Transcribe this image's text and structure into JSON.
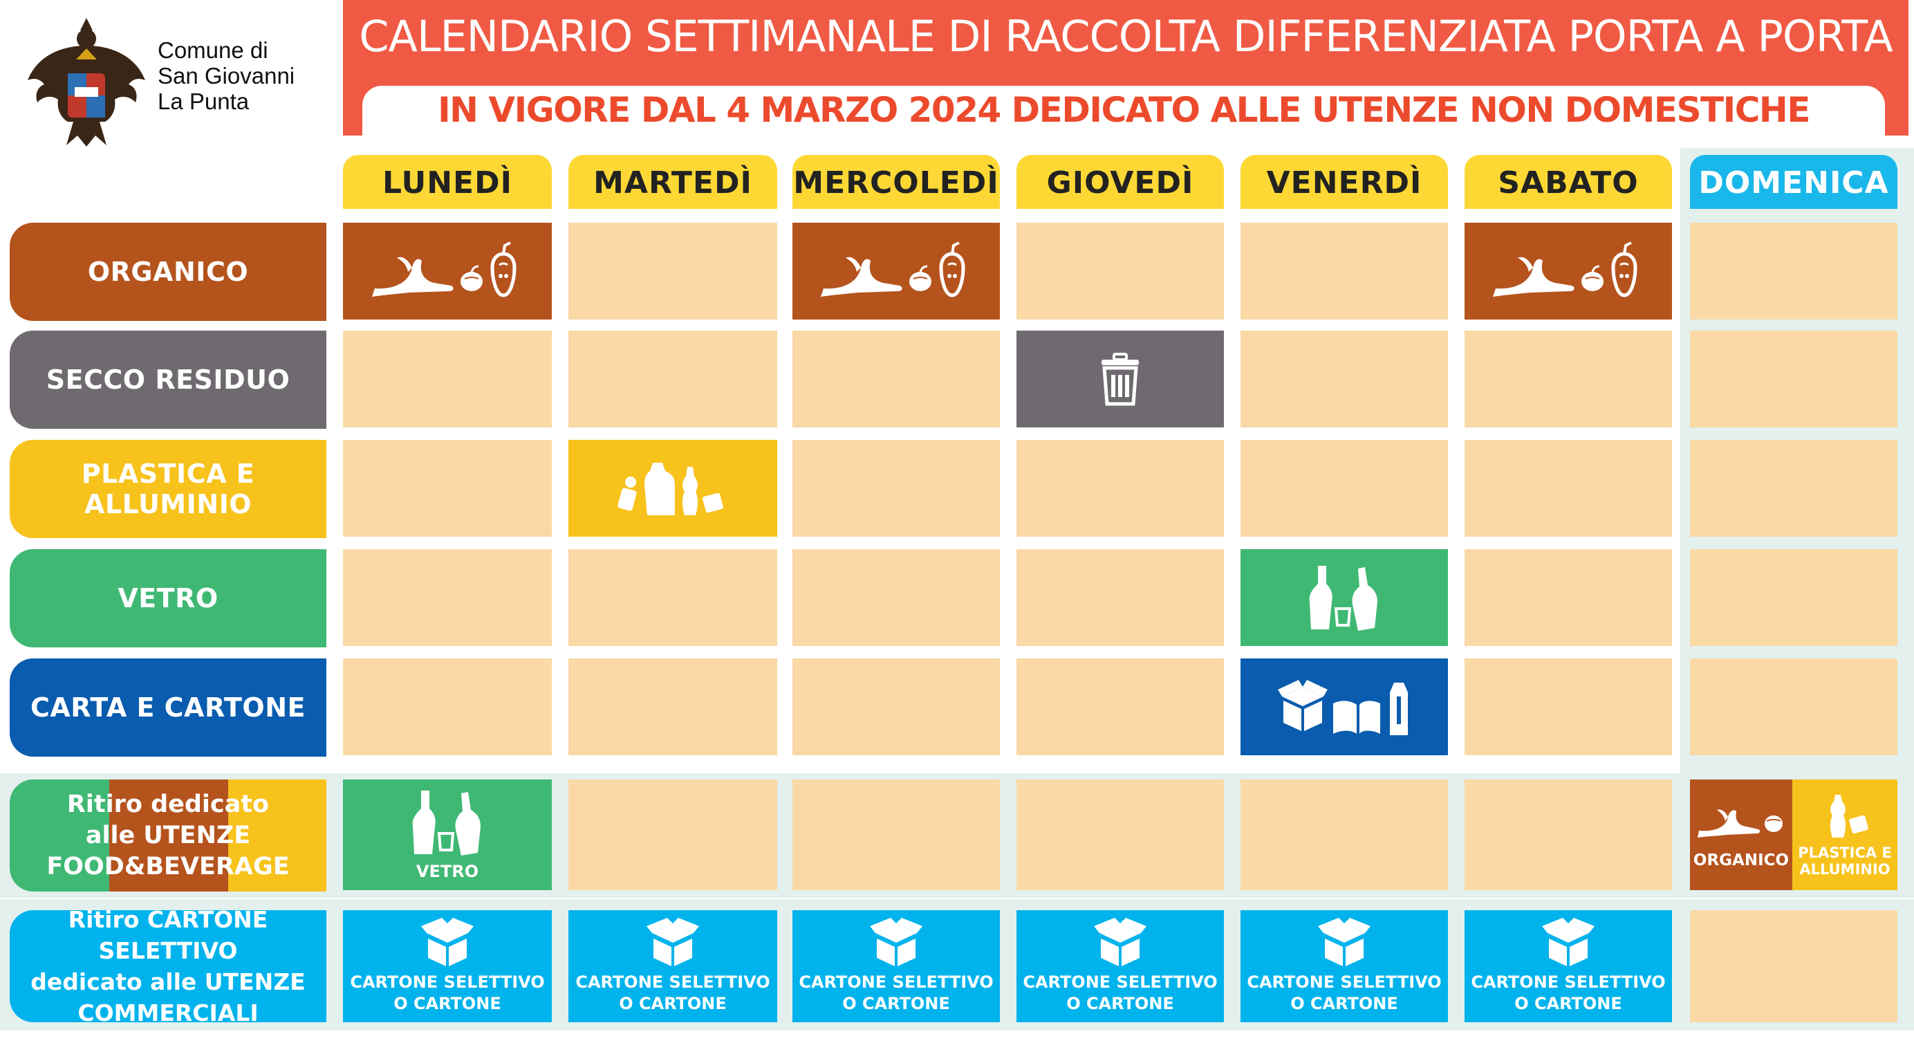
{
  "logo": {
    "lines": [
      "Comune di",
      "San Giovanni",
      "La Punta"
    ],
    "icon": "eagle-coat-of-arms-icon"
  },
  "header": {
    "title": "CALENDARIO SETTIMANALE DI RACCOLTA DIFFERENZIATA PORTA A PORTA",
    "subtitle": "IN VIGORE DAL 4 MARZO 2024 DEDICATO ALLE UTENZE NON DOMESTICHE"
  },
  "days": [
    "LUNEDÌ",
    "MARTEDÌ",
    "MERCOLEDÌ",
    "GIOVEDÌ",
    "VENERDÌ",
    "SABATO",
    "DOMENICA"
  ],
  "categories": [
    {
      "label": "ORGANICO",
      "color": "#b5531d",
      "icon": "organic-waste-icon"
    },
    {
      "label": "SECCO RESIDUO",
      "color": "#6f6a6f",
      "icon": "trash-bin-icon"
    },
    {
      "label": "PLASTICA E ALLUMINIO",
      "color": "#f7c21c",
      "icon": "plastic-bottles-icon"
    },
    {
      "label": "VETRO",
      "color": "#3fb874",
      "icon": "glass-bottles-icon"
    },
    {
      "label": "CARTA E CARTONE",
      "color": "#0a5cae",
      "icon": "paper-cardboard-icon"
    }
  ],
  "schedule": {
    "ORGANICO": [
      0,
      2,
      5
    ],
    "SECCO RESIDUO": [
      3
    ],
    "PLASTICA E ALLUMINIO": [
      1
    ],
    "VETRO": [
      4
    ],
    "CARTA E CARTONE": [
      4
    ]
  },
  "food_beverage": {
    "label_lines": [
      "Ritiro dedicato",
      "alle UTENZE",
      "FOOD&BEVERAGE"
    ],
    "monday_label": "VETRO",
    "sunday_organic_label": "ORGANICO",
    "sunday_plastic_label": "PLASTICA E ALLUMINIO"
  },
  "commercial": {
    "label_lines": [
      "Ritiro CARTONE SELETTIVO",
      "dedicato alle UTENZE",
      "COMMERCIALI"
    ],
    "cell_label": "CARTONE SELETTIVO O CARTONE",
    "cell_label_lines": [
      "CARTONE SELETTIVO",
      "O CARTONE"
    ],
    "days_active": [
      0,
      1,
      2,
      3,
      4,
      5
    ]
  },
  "colors": {
    "empty_cell": "#fad9a6",
    "header_red": "#f05a44",
    "subtitle_red": "#ec4a2c",
    "day_yellow": "#fdd835",
    "sunday_blue": "#1ab7ea",
    "cyan": "#00b3ec",
    "band": "#e3f0ee"
  }
}
